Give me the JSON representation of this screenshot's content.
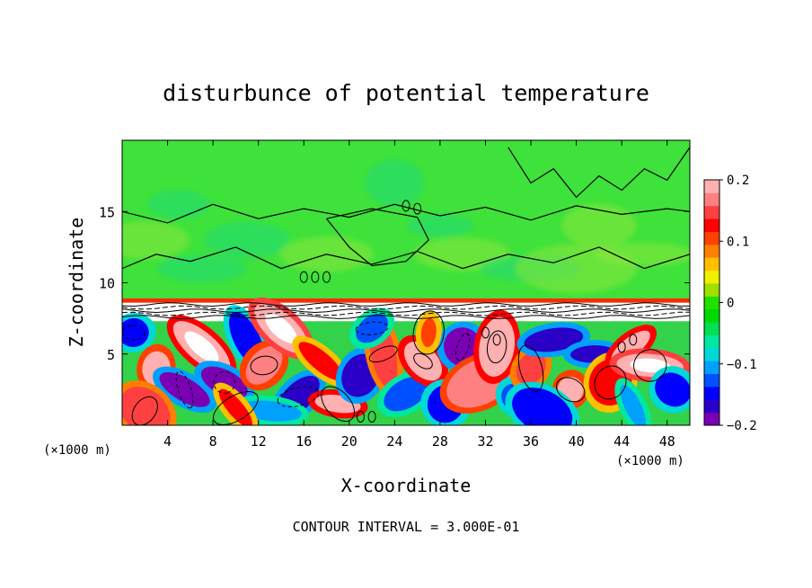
{
  "chart_data": {
    "type": "heatmap",
    "title": "disturbunce of potential temperature",
    "xlabel": "X-coordinate",
    "ylabel": "Z-coordinate",
    "x_unit_left": "(×1000 m)",
    "x_unit_right": "(×1000 m)",
    "xlim": [
      0,
      50
    ],
    "ylim": [
      0,
      20
    ],
    "x_ticks": [
      4,
      8,
      12,
      16,
      20,
      24,
      28,
      32,
      36,
      40,
      44,
      48
    ],
    "y_ticks": [
      5,
      10,
      15
    ],
    "contour_interval_text": "CONTOUR INTERVAL = 3.000E-01",
    "colorbar": {
      "range": [
        -0.2,
        0.2
      ],
      "tick_labels": [
        "0.2",
        "0.1",
        "0",
        "−0.1",
        "−0.2"
      ],
      "tick_values": [
        0.2,
        0.1,
        0,
        -0.1,
        -0.2
      ],
      "colors": [
        "#7a00b4",
        "#2a00c8",
        "#0000ff",
        "#0050ff",
        "#00a0ff",
        "#00d8d8",
        "#00e8a0",
        "#00e050",
        "#00d800",
        "#20e000",
        "#a0e000",
        "#f0f000",
        "#ffc000",
        "#ff8000",
        "#ff4000",
        "#ff0000",
        "#ff4040",
        "#ff8080",
        "#ffb0b0"
      ]
    },
    "field_description": {
      "upper_layer_z": [
        9,
        20
      ],
      "upper_layer_value": 0.0,
      "interface_z": 8.8,
      "lower_layer_z": [
        0,
        8.5
      ],
      "lower_layer_range": [
        -0.2,
        0.2
      ]
    }
  }
}
